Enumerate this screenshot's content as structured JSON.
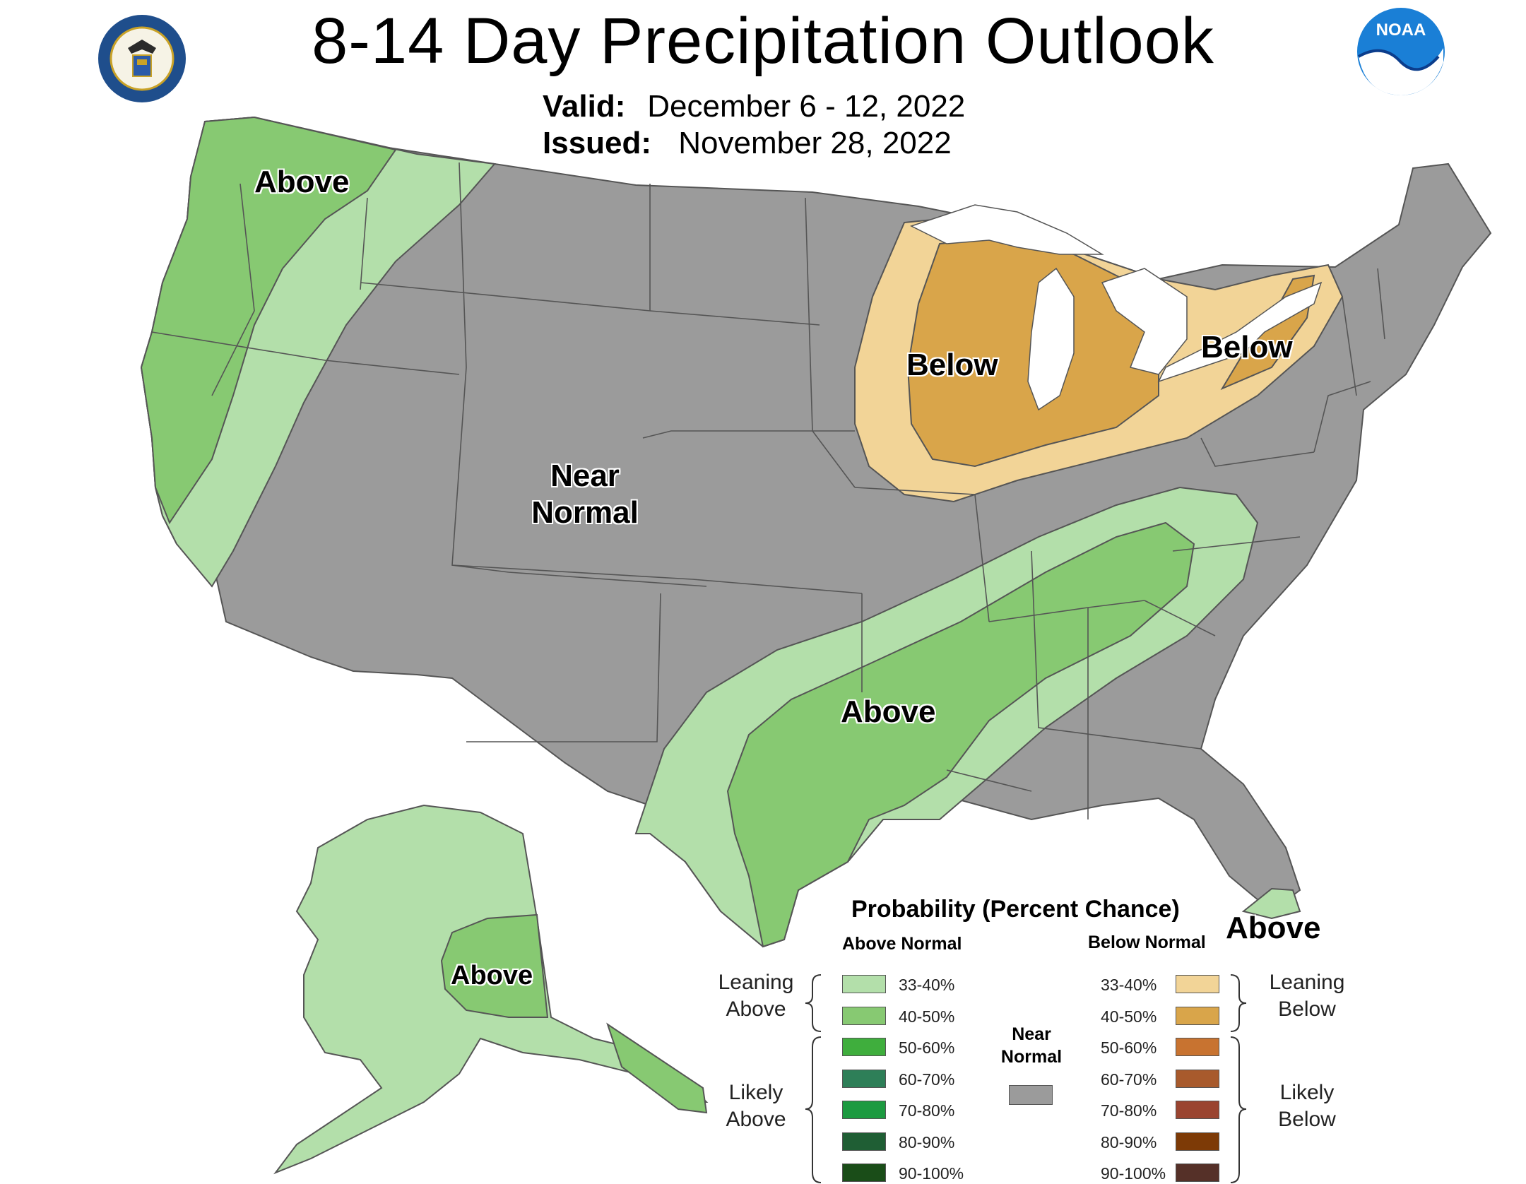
{
  "header": {
    "title": "8-14 Day Precipitation Outlook",
    "valid_label": "Valid:",
    "valid_value": "December 6 - 12, 2022",
    "issued_label": "Issued:",
    "issued_value": "November 28, 2022"
  },
  "logos": {
    "left": "doc-seal-icon",
    "right": "noaa-logo-icon",
    "noaa_text": "NOAA"
  },
  "map_labels": {
    "pnw": "Above",
    "great_lakes": "Below",
    "northeast": "Below",
    "central": [
      "Near",
      "Normal"
    ],
    "south": "Above",
    "florida": "Above",
    "alaska": "Above"
  },
  "legend": {
    "title": "Probability (Percent Chance)",
    "above_head": "Above Normal",
    "below_head": "Below Normal",
    "leaning_above": [
      "Leaning",
      "Above"
    ],
    "likely_above": [
      "Likely",
      "Above"
    ],
    "leaning_below": [
      "Leaning",
      "Below"
    ],
    "likely_below": [
      "Likely",
      "Below"
    ],
    "near_normal": [
      "Near",
      "Normal"
    ],
    "categories": [
      "33-40%",
      "40-50%",
      "50-60%",
      "60-70%",
      "70-80%",
      "80-90%",
      "90-100%"
    ],
    "above_colors": [
      "#b3dfaa",
      "#87c972",
      "#3fae3d",
      "#2e7f58",
      "#1c9a40",
      "#1f5e34",
      "#1a4d18"
    ],
    "below_colors": [
      "#f2d497",
      "#d9a54a",
      "#c87330",
      "#a85a2c",
      "#9a4430",
      "#7d3a06",
      "#553028"
    ],
    "near_color": "#9b9b9b"
  }
}
